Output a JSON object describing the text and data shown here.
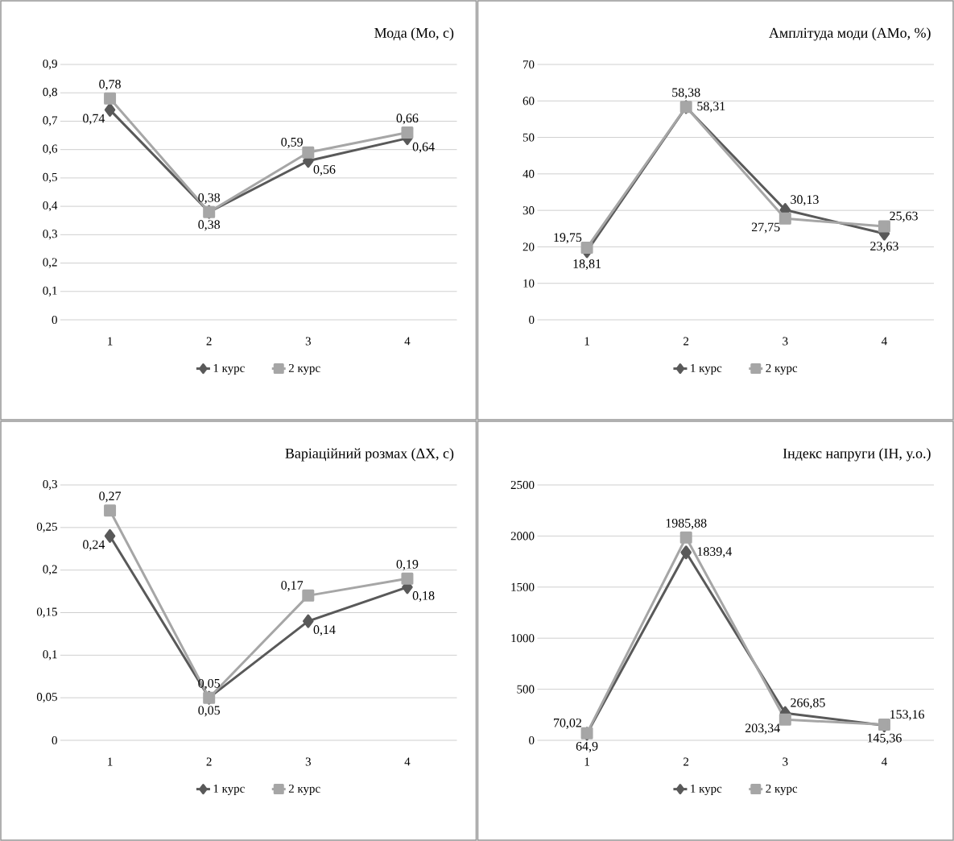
{
  "chart_data": [
    {
      "type": "line",
      "title": "Мода (Mo, c)",
      "categories": [
        "1",
        "2",
        "3",
        "4"
      ],
      "ylim": [
        0,
        0.9
      ],
      "yticks": [
        0,
        {
          "value": 0.1,
          "label": "0,1"
        },
        {
          "value": 0.2,
          "label": "0,2"
        },
        {
          "value": 0.3,
          "label": "0,3"
        },
        {
          "value": 0.4,
          "label": "0,4"
        },
        {
          "value": 0.5,
          "label": "0,5"
        },
        {
          "value": 0.6,
          "label": "0,6"
        },
        {
          "value": 0.7,
          "label": "0,7"
        },
        {
          "value": 0.8,
          "label": "0,8"
        },
        {
          "value": 0.9,
          "label": "0,9"
        }
      ],
      "grid": "y",
      "legend": "bottom",
      "series": [
        {
          "name": "1 курс",
          "color": "#595959",
          "marker": "diamond",
          "values": [
            0.74,
            0.38,
            0.56,
            0.64
          ],
          "value_labels": [
            "0,74",
            "0,38",
            "0,56",
            "0,64"
          ]
        },
        {
          "name": "2 курс",
          "color": "#a6a6a6",
          "marker": "square",
          "values": [
            0.78,
            0.38,
            0.59,
            0.66
          ],
          "value_labels": [
            "0,78",
            "0,38",
            "0,59",
            "0,66"
          ]
        }
      ]
    },
    {
      "type": "line",
      "title": "Амплітуда моди (AMo, %)",
      "categories": [
        "1",
        "2",
        "3",
        "4"
      ],
      "ylim": [
        0,
        70
      ],
      "yticks": [
        0,
        10,
        20,
        30,
        40,
        50,
        60,
        70
      ],
      "grid": "y",
      "legend": "bottom",
      "series": [
        {
          "name": "1 курс",
          "color": "#595959",
          "marker": "diamond",
          "values": [
            18.81,
            58.31,
            30.13,
            23.63
          ],
          "value_labels": [
            "18,81",
            "58,31",
            "30,13",
            "23,63"
          ]
        },
        {
          "name": "2 курс",
          "color": "#a6a6a6",
          "marker": "square",
          "values": [
            19.75,
            58.38,
            27.75,
            25.63
          ],
          "value_labels": [
            "19,75",
            "58,38",
            "27,75",
            "25,63"
          ]
        }
      ]
    },
    {
      "type": "line",
      "title": "Варіаційний розмах (ΔX, c)",
      "categories": [
        "1",
        "2",
        "3",
        "4"
      ],
      "ylim": [
        0,
        0.3
      ],
      "yticks": [
        0,
        {
          "value": 0.05,
          "label": "0,05"
        },
        {
          "value": 0.1,
          "label": "0,1"
        },
        {
          "value": 0.15,
          "label": "0,15"
        },
        {
          "value": 0.2,
          "label": "0,2"
        },
        {
          "value": 0.25,
          "label": "0,25"
        },
        {
          "value": 0.3,
          "label": "0,3"
        }
      ],
      "grid": "y",
      "legend": "bottom",
      "series": [
        {
          "name": "1 курс",
          "color": "#595959",
          "marker": "diamond",
          "values": [
            0.24,
            0.05,
            0.14,
            0.18
          ],
          "value_labels": [
            "0,24",
            "0,05",
            "0,14",
            "0,18"
          ]
        },
        {
          "name": "2 курс",
          "color": "#a6a6a6",
          "marker": "square",
          "values": [
            0.27,
            0.05,
            0.17,
            0.19
          ],
          "value_labels": [
            "0,27",
            "0,05",
            "0,17",
            "0,19"
          ]
        }
      ]
    },
    {
      "type": "line",
      "title": "Індекс напруги  (IH, у.о.)",
      "categories": [
        "1",
        "2",
        "3",
        "4"
      ],
      "ylim": [
        0,
        2500
      ],
      "yticks": [
        0,
        500,
        1000,
        1500,
        2000,
        2500
      ],
      "grid": "y",
      "legend": "bottom",
      "series": [
        {
          "name": "1 курс",
          "color": "#595959",
          "marker": "diamond",
          "values": [
            64.9,
            1839.4,
            266.85,
            145.36
          ],
          "value_labels": [
            "64,9",
            "1839,4",
            "266,85",
            "145,36"
          ]
        },
        {
          "name": "2 курс",
          "color": "#a6a6a6",
          "marker": "square",
          "values": [
            70.02,
            1985.88,
            203.34,
            153.16
          ],
          "value_labels": [
            "70,02",
            "1985,88",
            "203,34",
            "153,16"
          ]
        }
      ]
    }
  ]
}
